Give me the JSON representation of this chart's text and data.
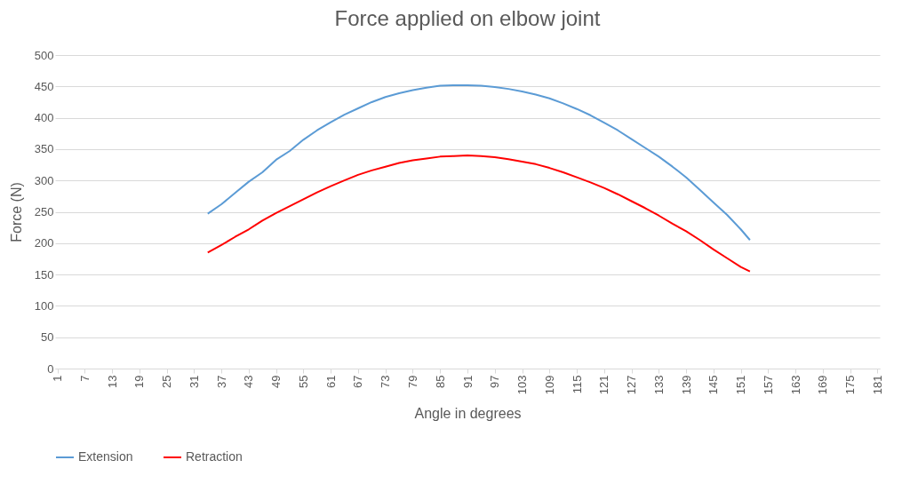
{
  "chart_data": {
    "type": "line",
    "title": "Force applied on elbow joint",
    "xlabel": "Angle in degrees",
    "ylabel": "Force  (N)",
    "x": [
      34,
      37,
      40,
      43,
      46,
      49,
      52,
      55,
      58,
      61,
      64,
      67,
      70,
      73,
      76,
      79,
      82,
      85,
      88,
      91,
      94,
      97,
      100,
      103,
      106,
      109,
      112,
      115,
      118,
      121,
      124,
      127,
      130,
      133,
      136,
      139,
      142,
      145,
      148,
      151,
      153
    ],
    "series": [
      {
        "name": "Extension",
        "color": "#5b9bd5",
        "values": [
          247,
          262,
          280,
          298,
          313,
          333,
          347,
          365,
          380,
          393,
          405,
          415,
          425,
          433,
          439,
          444,
          448,
          451,
          452,
          452,
          451,
          449,
          446,
          442,
          437,
          431,
          423,
          414,
          404,
          392,
          380,
          366,
          352,
          338,
          322,
          305,
          285,
          265,
          245,
          222,
          205
        ]
      },
      {
        "name": "Retraction",
        "color": "#ff0000",
        "values": [
          185,
          197,
          210,
          222,
          236,
          248,
          259,
          270,
          281,
          291,
          300,
          309,
          316,
          322,
          328,
          332,
          335,
          338,
          339,
          340,
          339,
          337,
          334,
          330,
          326,
          320,
          313,
          305,
          297,
          288,
          278,
          267,
          256,
          244,
          231,
          219,
          205,
          190,
          176,
          162,
          155
        ]
      }
    ],
    "xlim": [
      0.5,
      181.5
    ],
    "xticks": [
      1,
      7,
      13,
      19,
      25,
      31,
      37,
      43,
      49,
      55,
      61,
      67,
      73,
      79,
      85,
      91,
      97,
      103,
      109,
      115,
      121,
      127,
      133,
      139,
      145,
      151,
      157,
      163,
      169,
      175,
      181
    ],
    "ylim": [
      0,
      500
    ],
    "yticks": [
      0,
      50,
      100,
      150,
      200,
      250,
      300,
      350,
      400,
      450,
      500
    ],
    "grid": "y",
    "legend": "bottom"
  }
}
